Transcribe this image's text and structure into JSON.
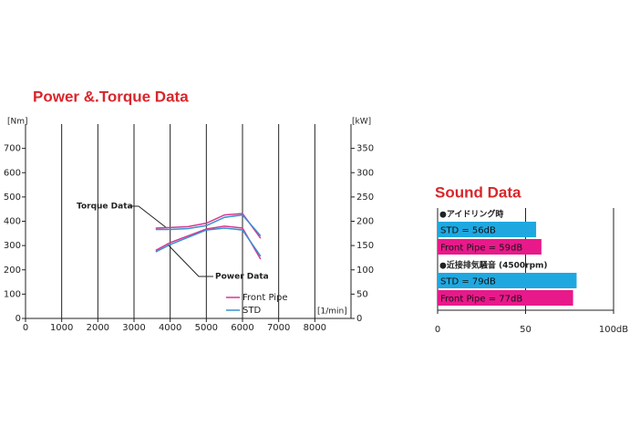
{
  "chart_data": [
    {
      "type": "line",
      "title": "Power &.Torque Data",
      "y_label": "[Nm]",
      "y2_label": "[kW]",
      "x_label": "[1/min]",
      "annotations": [
        "Torque Data",
        "Power Data"
      ],
      "x": [
        3600,
        4000,
        4500,
        5000,
        5500,
        6000,
        6500
      ],
      "series": [
        {
          "name": "Front Pipe",
          "color": "#d6388f",
          "values": [
            372,
            374,
            378,
            392,
            426,
            432,
            330
          ]
        },
        {
          "name": "STD",
          "color": "#3a8fd0",
          "values": [
            366,
            366,
            370,
            382,
            416,
            426,
            340
          ]
        },
        {
          "color": "#d6388f",
          "axis": "y2",
          "values": [
            140,
            156,
            170,
            184,
            190,
            186,
            122
          ]
        },
        {
          "color": "#3a8fd0",
          "axis": "y2",
          "values": [
            137,
            152,
            167,
            182,
            186,
            182,
            128
          ]
        }
      ],
      "xlim": [
        0,
        9000
      ],
      "xticks": [
        0,
        1000,
        2000,
        3000,
        4000,
        5000,
        6000,
        7000,
        8000
      ],
      "ylim": [
        0,
        800
      ],
      "yticks": [
        0,
        100,
        200,
        300,
        400,
        500,
        600,
        700
      ],
      "y2lim": [
        0,
        400
      ],
      "y2ticks": [
        0,
        50,
        100,
        150,
        200,
        250,
        300,
        350
      ],
      "grid": true
    },
    {
      "type": "hbar",
      "title": "Sound Data",
      "groups": [
        "●アイドリング時",
        "●近接排気騒音 (4500rpm)"
      ],
      "series": [
        {
          "color": "#1fa8e0",
          "values": [
            56,
            79
          ],
          "value_labels": [
            "STD = 56dB",
            "STD = 79dB"
          ]
        },
        {
          "color": "#e8198b",
          "values": [
            59,
            77
          ],
          "value_labels": [
            "Front Pipe = 59dB",
            "Front Pipe = 77dB"
          ]
        }
      ],
      "xlim": [
        0,
        100
      ],
      "xticks": [
        0,
        50,
        {
          "value": 100,
          "label": "100dB"
        }
      ],
      "grid": true
    }
  ]
}
